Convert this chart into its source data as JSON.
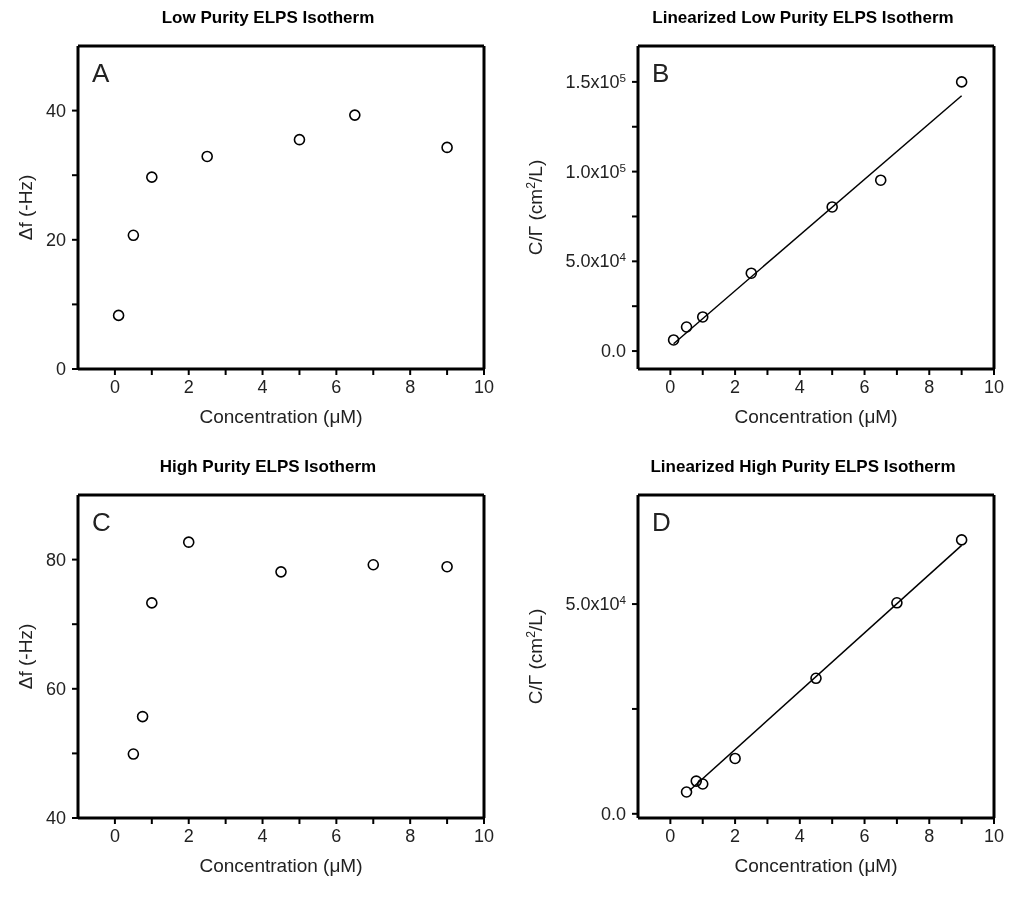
{
  "chart_data": [
    {
      "type": "scatter",
      "title": "Low Purity ELPS Isotherm",
      "xlabel": "Concentration (μM)",
      "ylabel": "Δf (-Hz)",
      "annotations": [
        "A"
      ],
      "xlim": [
        -1,
        10
      ],
      "xticks": [
        0,
        {
          "value": 1,
          "label": null
        },
        2,
        {
          "value": 3,
          "label": null
        },
        4,
        {
          "value": 5,
          "label": null
        },
        6,
        {
          "value": 7,
          "label": null
        },
        8,
        {
          "value": 9,
          "label": null
        },
        10
      ],
      "ylim": [
        0,
        50
      ],
      "yticks": [
        0,
        {
          "value": 10,
          "label": null
        },
        20,
        {
          "value": 30,
          "label": null
        },
        40
      ],
      "series": [
        {
          "marker": "circle",
          "color": "#000000",
          "x": [
            0.1,
            0.5,
            1.0,
            2.5,
            5.0,
            6.5,
            9.0
          ],
          "values": [
            8.3,
            20.7,
            29.7,
            32.9,
            35.5,
            39.3,
            34.3
          ]
        }
      ]
    },
    {
      "type": "scatter",
      "title": "Linearized Low Purity ELPS Isotherm",
      "xlabel": "Concentration (μM)",
      "ylabel": "C/Γ (cm$^{2}$/L)",
      "annotations": [
        "B"
      ],
      "xlim": [
        -1,
        10
      ],
      "xticks": [
        0,
        {
          "value": 1,
          "label": null
        },
        2,
        {
          "value": 3,
          "label": null
        },
        4,
        {
          "value": 5,
          "label": null
        },
        6,
        {
          "value": 7,
          "label": null
        },
        8,
        {
          "value": 9,
          "label": null
        },
        10
      ],
      "ylim": [
        -10000,
        170000
      ],
      "yticks": [
        {
          "value": 0,
          "label": "0.0"
        },
        {
          "value": 25000,
          "label": null
        },
        {
          "value": 50000,
          "label": "5.0x10$^{4}$"
        },
        {
          "value": 75000,
          "label": null
        },
        {
          "value": 100000,
          "label": "1.0x10$^{5}$"
        },
        {
          "value": 125000,
          "label": null
        },
        {
          "value": 150000,
          "label": "1.5x10$^{5}$"
        }
      ],
      "series": [
        {
          "marker": "circle",
          "color": "#000000",
          "x": [
            0.1,
            0.5,
            1.0,
            2.5,
            5.0,
            6.5,
            9.0
          ],
          "values": [
            6200,
            13400,
            19000,
            43400,
            80300,
            95200,
            150000
          ]
        },
        {
          "type": "line",
          "marker": "none",
          "color": "#000000",
          "x": [
            0.1,
            9.0
          ],
          "values": [
            4100,
            142300
          ]
        }
      ]
    },
    {
      "type": "scatter",
      "title": "High Purity ELPS Isotherm",
      "xlabel": "Concentration (μM)",
      "ylabel": "Δf (-Hz)",
      "annotations": [
        "C"
      ],
      "xlim": [
        -1,
        10
      ],
      "xticks": [
        0,
        {
          "value": 1,
          "label": null
        },
        2,
        {
          "value": 3,
          "label": null
        },
        4,
        {
          "value": 5,
          "label": null
        },
        6,
        {
          "value": 7,
          "label": null
        },
        8,
        {
          "value": 9,
          "label": null
        },
        10
      ],
      "ylim": [
        40,
        90
      ],
      "yticks": [
        40,
        {
          "value": 50,
          "label": null
        },
        60,
        {
          "value": 70,
          "label": null
        },
        80
      ],
      "series": [
        {
          "marker": "circle",
          "color": "#000000",
          "x": [
            0.5,
            0.75,
            1.0,
            2.0,
            4.5,
            7.0,
            9.0
          ],
          "values": [
            49.9,
            55.7,
            73.3,
            82.7,
            78.1,
            79.2,
            78.9
          ]
        }
      ]
    },
    {
      "type": "scatter",
      "title": "Linearized High Purity ELPS Isotherm",
      "xlabel": "Concentration (μM)",
      "ylabel": "C/Γ (cm$^{2}$/L)",
      "annotations": [
        "D"
      ],
      "xlim": [
        -1,
        10
      ],
      "xticks": [
        0,
        {
          "value": 1,
          "label": null
        },
        2,
        {
          "value": 3,
          "label": null
        },
        4,
        {
          "value": 5,
          "label": null
        },
        6,
        {
          "value": 7,
          "label": null
        },
        8,
        {
          "value": 9,
          "label": null
        },
        10
      ],
      "ylim": [
        -1000,
        76000
      ],
      "yticks": [
        {
          "value": 0,
          "label": "0.0"
        },
        {
          "value": 25000,
          "label": null
        },
        {
          "value": 50000,
          "label": "5.0x10$^{4}$"
        }
      ],
      "series": [
        {
          "marker": "circle",
          "color": "#000000",
          "x": [
            0.5,
            0.8,
            1.0,
            2.0,
            4.5,
            7.0,
            9.0
          ],
          "values": [
            5200,
            7800,
            7100,
            13200,
            32300,
            50300,
            65300
          ]
        },
        {
          "type": "line",
          "marker": "none",
          "color": "#000000",
          "x": [
            0.6,
            9.0
          ],
          "values": [
            5600,
            64000
          ]
        }
      ]
    }
  ]
}
